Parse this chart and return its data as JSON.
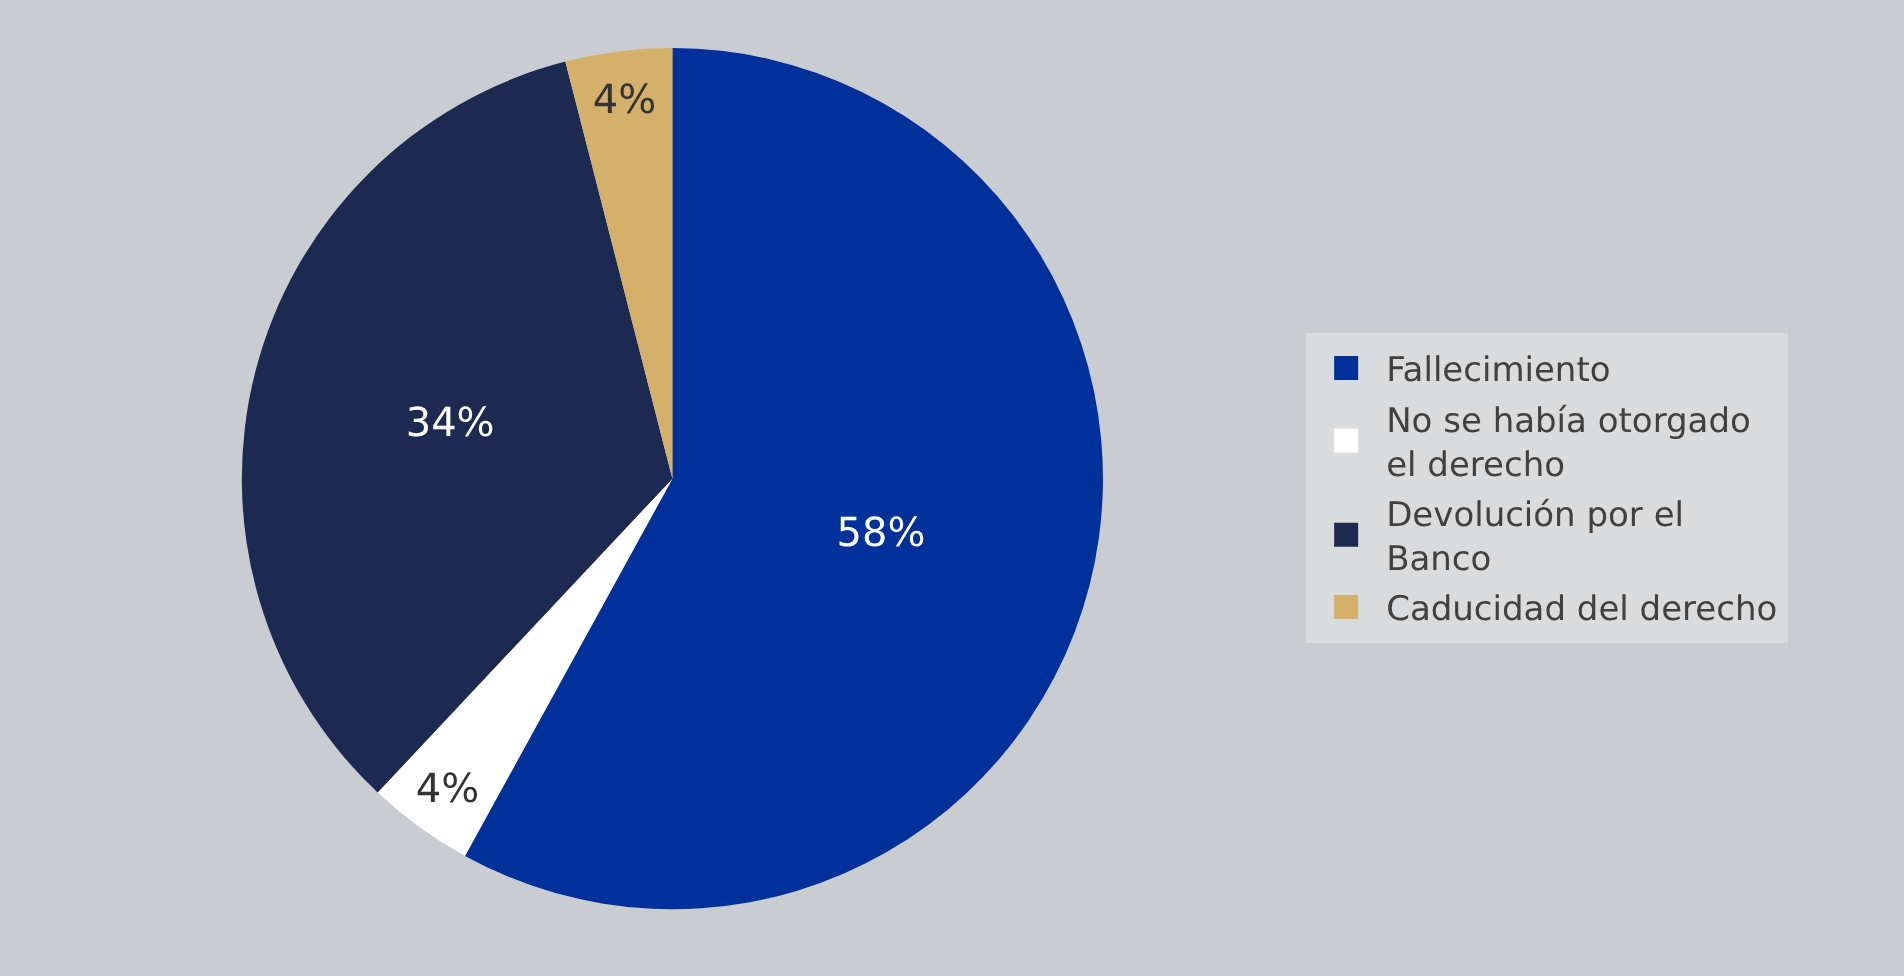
{
  "chart_data": {
    "type": "pie",
    "categories": [
      "Fallecimiento",
      "No se había otorgado el derecho",
      "Devolución por el Banco",
      "Caducidad del derecho"
    ],
    "values": [
      58,
      4,
      34,
      4
    ],
    "colors": [
      "#00309a",
      "#ffffff",
      "#1c2951",
      "#d4b06a"
    ],
    "value_labels": [
      "58%",
      "4%",
      "34%",
      "4%"
    ],
    "legend": "right"
  }
}
